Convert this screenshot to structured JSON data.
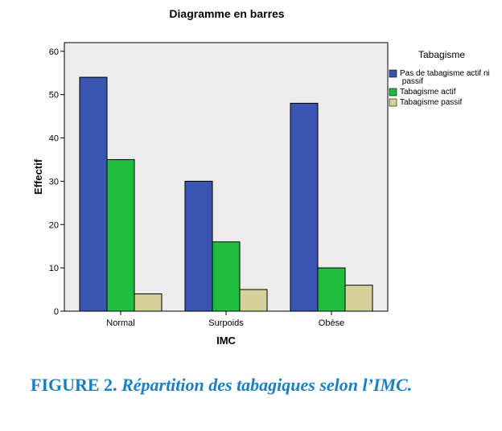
{
  "chart_data": {
    "type": "bar",
    "title": "Diagramme en barres",
    "xlabel": "IMC",
    "ylabel": "Effectif",
    "categories": [
      "Normal",
      "Surpoids",
      "Obèse"
    ],
    "series": [
      {
        "name": "Pas de tabagisme actif ni passif",
        "values": [
          54,
          30,
          48
        ],
        "color": "#3a55b0"
      },
      {
        "name": "Tabagisme actif",
        "values": [
          35,
          16,
          10
        ],
        "color": "#1fbe3e"
      },
      {
        "name": "Tabagisme passif",
        "values": [
          4,
          5,
          6
        ],
        "color": "#d6d09a"
      }
    ],
    "ylim": [
      0,
      62
    ],
    "yticks": [
      0,
      10,
      20,
      30,
      40,
      50,
      60
    ],
    "grid": false,
    "legend": {
      "title": "Tabagisme",
      "placement": "right"
    },
    "plot_background": "#ececec"
  },
  "caption": {
    "label": "FIGURE 2.",
    "text": "Répartition des tabagiques selon l’IMC.",
    "color": "#1a7fc1"
  }
}
